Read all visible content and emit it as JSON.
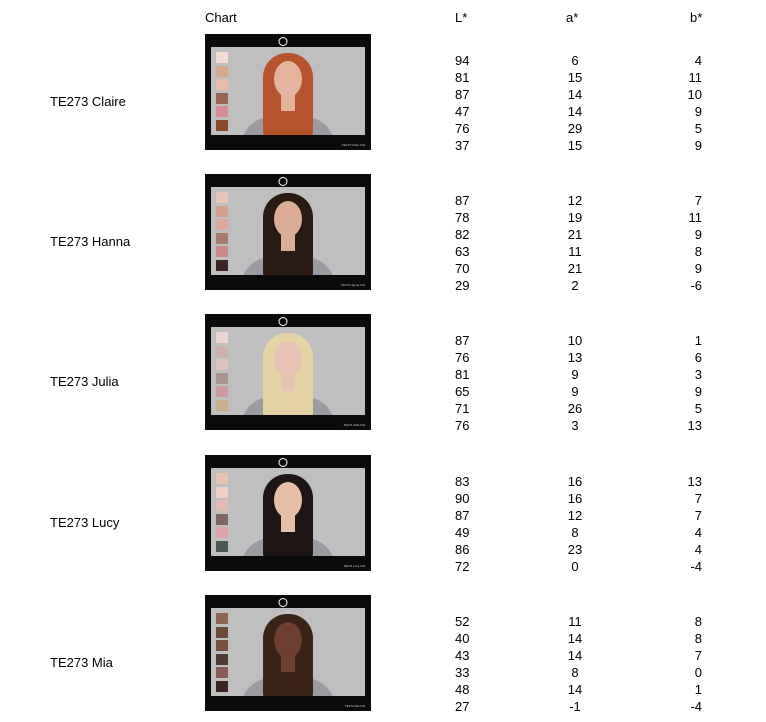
{
  "headers": {
    "chart": "Chart",
    "L": "L*",
    "a": "a*",
    "b": "b*"
  },
  "rows": [
    {
      "name": "TE273 Claire",
      "caption": "TE273 Claire 3x9",
      "hair": "#b5542c",
      "skin": "#e2b49e",
      "swatches": [
        "#f3dcd3",
        "#d9a88f",
        "#ebb9a8",
        "#9a6550",
        "#d88c95",
        "#8a4a2a"
      ],
      "L": [
        94,
        81,
        87,
        47,
        76,
        37
      ],
      "a": [
        6,
        15,
        14,
        14,
        29,
        15
      ],
      "b": [
        4,
        11,
        10,
        9,
        5,
        9
      ]
    },
    {
      "name": "TE273 Hanna",
      "caption": "TE273 Hanna 3x9",
      "hair": "#2a1a14",
      "skin": "#dcae98",
      "swatches": [
        "#e6c5b8",
        "#d59f8d",
        "#e0a99b",
        "#a87b6d",
        "#c98a88",
        "#3b2425"
      ],
      "L": [
        87,
        78,
        82,
        63,
        70,
        29
      ],
      "a": [
        12,
        19,
        21,
        11,
        21,
        2
      ],
      "b": [
        7,
        11,
        9,
        8,
        9,
        -6
      ]
    },
    {
      "name": "TE273 Julia",
      "caption": "TE273 Julia 3x9",
      "hair": "#e6d3a3",
      "skin": "#e8c2b2",
      "swatches": [
        "#e9d6d3",
        "#cfb0aa",
        "#dcc2c0",
        "#aa9390",
        "#cf9ba0",
        "#c9b08c"
      ],
      "L": [
        87,
        76,
        81,
        65,
        71,
        76
      ],
      "a": [
        10,
        13,
        9,
        9,
        26,
        3
      ],
      "b": [
        1,
        6,
        3,
        9,
        5,
        13
      ]
    },
    {
      "name": "TE273 Lucy",
      "caption": "TE273 Lucy 3x9",
      "hair": "#1e1614",
      "skin": "#e6bfa6",
      "swatches": [
        "#e7c2b1",
        "#f0cdc6",
        "#e4b9b3",
        "#806662",
        "#e0a3aa",
        "#4b5a50"
      ],
      "L": [
        83,
        90,
        87,
        49,
        86,
        72
      ],
      "a": [
        16,
        16,
        12,
        8,
        23,
        0
      ],
      "b": [
        13,
        7,
        7,
        4,
        4,
        -4
      ]
    },
    {
      "name": "TE273 Mia",
      "caption": "TE273 Mia 3x9",
      "hair": "#3a2418",
      "skin": "#6b4030",
      "swatches": [
        "#8e6552",
        "#6e4a38",
        "#77503f",
        "#4f3c35",
        "#8a5a56",
        "#3a2320"
      ],
      "L": [
        52,
        40,
        43,
        33,
        48,
        27
      ],
      "a": [
        11,
        14,
        14,
        8,
        14,
        -1
      ],
      "b": [
        8,
        8,
        7,
        0,
        1,
        -4
      ]
    }
  ]
}
